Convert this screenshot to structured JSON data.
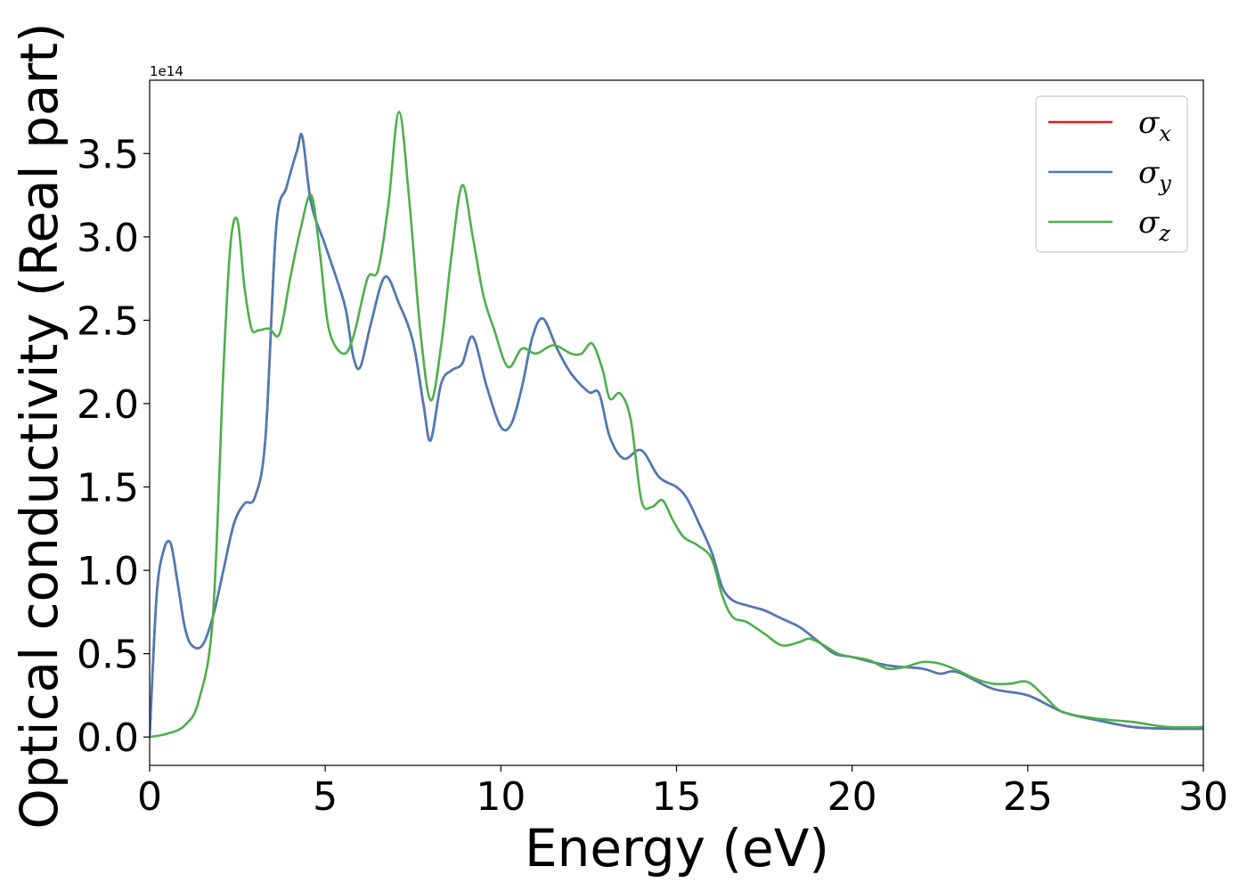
{
  "chart_data": {
    "type": "line",
    "title": "",
    "xlabel": "Energy (eV)",
    "ylabel": "Optical conductivity (Real part)",
    "y_offset_label": "1e14",
    "y_scale": 100000000000000.0,
    "xlim": [
      0,
      30
    ],
    "ylim": [
      -0.17,
      3.94
    ],
    "x_ticks": [
      0,
      5,
      10,
      15,
      20,
      25,
      30
    ],
    "x_tick_labels": [
      "0",
      "5",
      "10",
      "15",
      "20",
      "25",
      "30"
    ],
    "y_ticks": [
      0.0,
      0.5,
      1.0,
      1.5,
      2.0,
      2.5,
      3.0,
      3.5
    ],
    "y_tick_labels": [
      "0.0",
      "0.5",
      "1.0",
      "1.5",
      "2.0",
      "2.5",
      "3.0",
      "3.5"
    ],
    "grid": false,
    "legend_position": "top-right",
    "series": [
      {
        "name": "σx",
        "symbol": "σ",
        "subscript": "x",
        "color": "#e41a1c",
        "x": [
          0,
          0.2,
          0.4,
          0.6,
          0.8,
          1.0,
          1.2,
          1.5,
          1.8,
          2.1,
          2.4,
          2.7,
          3.0,
          3.3,
          3.6,
          3.9,
          4.2,
          4.35,
          4.6,
          5.0,
          5.4,
          5.6,
          5.8,
          6.0,
          6.3,
          6.7,
          7.1,
          7.5,
          7.8,
          8.0,
          8.3,
          8.6,
          8.9,
          9.2,
          9.6,
          10.0,
          10.3,
          10.6,
          10.9,
          11.2,
          11.6,
          12.0,
          12.5,
          12.8,
          13.1,
          13.5,
          14.0,
          14.5,
          15.0,
          15.3,
          15.6,
          16.0,
          16.3,
          16.6,
          17.0,
          17.5,
          18.0,
          18.5,
          19.0,
          19.5,
          20.0,
          21.0,
          22.0,
          22.5,
          23.0,
          24.0,
          25.0,
          26.0,
          27.0,
          28.0,
          29.0,
          30.0
        ],
        "values": [
          0.0,
          0.85,
          1.12,
          1.16,
          0.92,
          0.66,
          0.55,
          0.55,
          0.72,
          1.0,
          1.28,
          1.4,
          1.44,
          1.8,
          3.05,
          3.3,
          3.52,
          3.6,
          3.2,
          2.95,
          2.7,
          2.55,
          2.28,
          2.22,
          2.48,
          2.76,
          2.6,
          2.37,
          1.99,
          1.78,
          2.12,
          2.2,
          2.24,
          2.4,
          2.1,
          1.86,
          1.88,
          2.1,
          2.4,
          2.51,
          2.33,
          2.18,
          2.07,
          2.06,
          1.8,
          1.67,
          1.72,
          1.56,
          1.5,
          1.43,
          1.3,
          1.11,
          0.9,
          0.82,
          0.79,
          0.76,
          0.71,
          0.66,
          0.58,
          0.5,
          0.48,
          0.43,
          0.41,
          0.38,
          0.39,
          0.29,
          0.25,
          0.15,
          0.1,
          0.06,
          0.05,
          0.05
        ]
      },
      {
        "name": "σy",
        "symbol": "σ",
        "subscript": "y",
        "color": "#4a7bb7",
        "x": [
          0,
          0.2,
          0.4,
          0.6,
          0.8,
          1.0,
          1.2,
          1.5,
          1.8,
          2.1,
          2.4,
          2.7,
          3.0,
          3.3,
          3.6,
          3.9,
          4.2,
          4.35,
          4.6,
          5.0,
          5.4,
          5.6,
          5.8,
          6.0,
          6.3,
          6.7,
          7.1,
          7.5,
          7.8,
          8.0,
          8.3,
          8.6,
          8.9,
          9.2,
          9.6,
          10.0,
          10.3,
          10.6,
          10.9,
          11.2,
          11.6,
          12.0,
          12.5,
          12.8,
          13.1,
          13.5,
          14.0,
          14.5,
          15.0,
          15.3,
          15.6,
          16.0,
          16.3,
          16.6,
          17.0,
          17.5,
          18.0,
          18.5,
          19.0,
          19.5,
          20.0,
          21.0,
          22.0,
          22.5,
          23.0,
          24.0,
          25.0,
          26.0,
          27.0,
          28.0,
          29.0,
          30.0
        ],
        "values": [
          0.0,
          0.85,
          1.12,
          1.16,
          0.92,
          0.66,
          0.55,
          0.55,
          0.72,
          1.0,
          1.28,
          1.4,
          1.44,
          1.8,
          3.05,
          3.3,
          3.52,
          3.6,
          3.2,
          2.95,
          2.7,
          2.55,
          2.28,
          2.22,
          2.48,
          2.76,
          2.6,
          2.37,
          1.99,
          1.78,
          2.12,
          2.2,
          2.24,
          2.4,
          2.1,
          1.86,
          1.88,
          2.1,
          2.4,
          2.51,
          2.33,
          2.18,
          2.07,
          2.06,
          1.8,
          1.67,
          1.72,
          1.56,
          1.5,
          1.43,
          1.3,
          1.11,
          0.9,
          0.82,
          0.79,
          0.76,
          0.71,
          0.66,
          0.58,
          0.5,
          0.48,
          0.43,
          0.41,
          0.38,
          0.39,
          0.29,
          0.25,
          0.15,
          0.1,
          0.06,
          0.05,
          0.05
        ]
      },
      {
        "name": "σz",
        "symbol": "σ",
        "subscript": "z",
        "color": "#4daf4a",
        "x": [
          0,
          0.5,
          1.0,
          1.4,
          1.8,
          2.1,
          2.3,
          2.5,
          2.7,
          2.9,
          3.1,
          3.4,
          3.7,
          4.0,
          4.3,
          4.6,
          4.85,
          5.1,
          5.5,
          5.8,
          6.2,
          6.5,
          6.8,
          7.1,
          7.4,
          7.7,
          8.0,
          8.3,
          8.6,
          8.9,
          9.2,
          9.5,
          9.8,
          10.2,
          10.6,
          11.0,
          11.5,
          12.0,
          12.3,
          12.6,
          12.9,
          13.1,
          13.4,
          13.7,
          14.0,
          14.3,
          14.6,
          14.9,
          15.2,
          15.6,
          16.0,
          16.3,
          16.6,
          17.0,
          17.5,
          18.0,
          18.5,
          18.8,
          19.2,
          19.6,
          20.0,
          20.5,
          21.0,
          21.5,
          22.0,
          22.5,
          23.0,
          23.5,
          24.0,
          24.5,
          25.0,
          25.5,
          26.0,
          27.0,
          28.0,
          29.0,
          30.0
        ],
        "values": [
          0.0,
          0.02,
          0.07,
          0.22,
          0.72,
          2.2,
          2.95,
          3.1,
          2.7,
          2.45,
          2.44,
          2.45,
          2.42,
          2.75,
          3.05,
          3.25,
          2.9,
          2.45,
          2.3,
          2.4,
          2.75,
          2.8,
          3.2,
          3.75,
          3.2,
          2.45,
          2.02,
          2.35,
          2.9,
          3.31,
          3.0,
          2.65,
          2.45,
          2.22,
          2.33,
          2.3,
          2.35,
          2.3,
          2.3,
          2.36,
          2.2,
          2.03,
          2.06,
          1.9,
          1.42,
          1.38,
          1.42,
          1.3,
          1.2,
          1.15,
          1.07,
          0.85,
          0.72,
          0.69,
          0.62,
          0.55,
          0.57,
          0.59,
          0.55,
          0.5,
          0.48,
          0.46,
          0.41,
          0.42,
          0.45,
          0.44,
          0.4,
          0.35,
          0.32,
          0.32,
          0.33,
          0.24,
          0.15,
          0.11,
          0.09,
          0.06,
          0.06
        ]
      }
    ]
  }
}
